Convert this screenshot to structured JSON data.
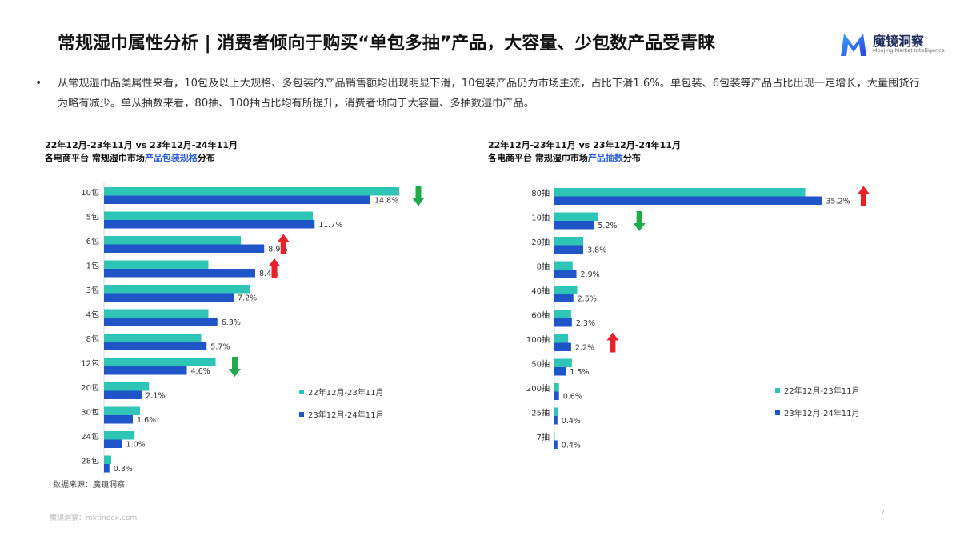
{
  "header": {
    "title": "常规湿巾属性分析 | 消费者倾向于购买“单包多抽”产品，大容量、少包数产品受青睐",
    "logo_name": "魔镜洞察",
    "logo_sub": "Moojing Market Intelligence"
  },
  "summary": "从常规湿巾品类属性来看，10包及以上大规格、多包装的产品销售额均出现明显下滑，10包装产品仍为市场主流，占比下滑1.6%。单包装、6包装等产品占比出现一定增长，大量囤货行为略有减少。单从抽数来看，80抽、100抽占比均有所提升，消费者倾向于大容量、多抽数湿巾产品。",
  "colors": {
    "prev": "#2ec4b6",
    "curr": "#1f55c9",
    "up": "#e8202a",
    "down": "#1faa4b"
  },
  "chart_data": [
    {
      "type": "bar",
      "orientation": "horizontal",
      "title_line1": "22年12月-23年11月 vs 23年12月-24年11月",
      "title_pre": "各电商平台 常规湿巾市场",
      "title_hl": "产品包装规格",
      "title_post": "分布",
      "categories": [
        "10包",
        "5包",
        "6包",
        "1包",
        "3包",
        "4包",
        "8包",
        "12包",
        "20包",
        "30包",
        "24包",
        "28包"
      ],
      "series": [
        {
          "name": "22年12月-23年11月",
          "values": [
            16.4,
            11.6,
            7.6,
            5.8,
            8.1,
            5.8,
            5.4,
            6.2,
            2.5,
            2.0,
            1.7,
            0.4
          ]
        },
        {
          "name": "23年12月-24年11月",
          "values": [
            14.8,
            11.7,
            8.9,
            8.4,
            7.2,
            6.3,
            5.7,
            4.6,
            2.1,
            1.6,
            1.0,
            0.3
          ]
        }
      ],
      "data_labels": [
        "14.8%",
        "11.7%",
        "8.9%",
        "8.4%",
        "7.2%",
        "6.3%",
        "5.7%",
        "4.6%",
        "2.1%",
        "1.6%",
        "1.0%",
        "0.3%"
      ],
      "arrows": [
        {
          "category": "10包",
          "direction": "down"
        },
        {
          "category": "6包",
          "direction": "up"
        },
        {
          "category": "1包",
          "direction": "up"
        },
        {
          "category": "12包",
          "direction": "down"
        }
      ],
      "legend": [
        "22年12月-23年11月",
        "23年12月-24年11月"
      ],
      "legend_position": "right",
      "grid": false
    },
    {
      "type": "bar",
      "orientation": "horizontal",
      "title_line1": "22年12月-23年11月 vs 23年12月-24年11月",
      "title_pre": "各电商平台 常规湿巾市场",
      "title_hl": "产品抽数",
      "title_post": "分布",
      "categories": [
        "80抽",
        "10抽",
        "20抽",
        "8抽",
        "40抽",
        "60抽",
        "100抽",
        "50抽",
        "200抽",
        "25抽",
        "7抽"
      ],
      "series": [
        {
          "name": "22年12月-23年11月",
          "values": [
            33.0,
            5.7,
            3.8,
            2.4,
            3.0,
            2.2,
            1.8,
            2.3,
            0.6,
            0.5,
            0.05
          ]
        },
        {
          "name": "23年12月-24年11月",
          "values": [
            35.2,
            5.2,
            3.8,
            2.9,
            2.5,
            2.3,
            2.2,
            1.5,
            0.6,
            0.4,
            0.4
          ]
        }
      ],
      "data_labels": [
        "35.2%",
        "5.2%",
        "3.8%",
        "2.9%",
        "2.5%",
        "2.3%",
        "2.2%",
        "1.5%",
        "0.6%",
        "0.4%",
        "0.4%"
      ],
      "arrows": [
        {
          "category": "80抽",
          "direction": "up"
        },
        {
          "category": "10抽",
          "direction": "down"
        },
        {
          "category": "100抽",
          "direction": "up"
        }
      ],
      "legend": [
        "22年12月-23年11月",
        "23年12月-24年11月"
      ],
      "legend_position": "right",
      "grid": false
    }
  ],
  "footer": {
    "source": "数据来源：魔镜洞察",
    "site": "魔镜洞察：mktindex.com",
    "page": "7"
  }
}
